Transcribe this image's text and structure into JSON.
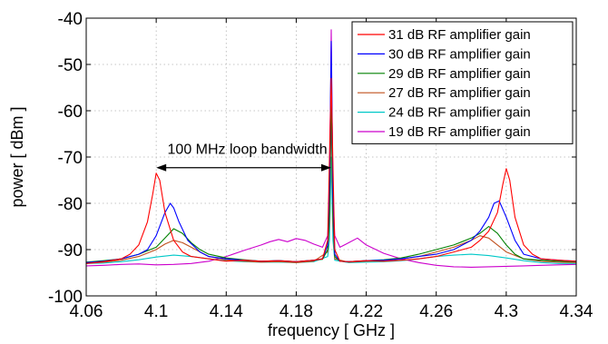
{
  "chart_data": {
    "type": "line",
    "title": "",
    "xlabel": "frequency [ GHz ]",
    "ylabel": "power [ dBm ]",
    "xlim": [
      4.06,
      4.34
    ],
    "ylim": [
      -100,
      -40
    ],
    "xticks": [
      4.06,
      4.1,
      4.14,
      4.18,
      4.22,
      4.26,
      4.3,
      4.34
    ],
    "xtick_labels": [
      "4.06",
      "4.1",
      "4.14",
      "4.18",
      "4.22",
      "4.26",
      "4.3",
      "4.34"
    ],
    "yticks": [
      -100,
      -90,
      -80,
      -70,
      -60,
      -50,
      -40
    ],
    "ytick_labels": [
      "-100",
      "-90",
      "-80",
      "-70",
      "-60",
      "-50",
      "-40"
    ],
    "grid": true,
    "legend_position": "top-right",
    "annotation": {
      "text": "100 MHz loop bandwidth",
      "arrow_from": [
        4.1,
        -72.3
      ],
      "arrow_to": [
        4.2,
        -72.3
      ]
    },
    "series": [
      {
        "name": "31 dB RF amplifier gain",
        "color": "#ff0000",
        "x": [
          4.06,
          4.07,
          4.08,
          4.085,
          4.09,
          4.095,
          4.098,
          4.1,
          4.102,
          4.105,
          4.11,
          4.115,
          4.12,
          4.13,
          4.14,
          4.15,
          4.16,
          4.17,
          4.18,
          4.19,
          4.195,
          4.198,
          4.199,
          4.2,
          4.201,
          4.202,
          4.205,
          4.21,
          4.22,
          4.23,
          4.24,
          4.25,
          4.26,
          4.27,
          4.28,
          4.285,
          4.29,
          4.295,
          4.298,
          4.3,
          4.302,
          4.305,
          4.31,
          4.315,
          4.32,
          4.33,
          4.34
        ],
        "y": [
          -93,
          -92.6,
          -92,
          -91,
          -89,
          -84,
          -78,
          -73.5,
          -75,
          -82,
          -88,
          -90.5,
          -91.5,
          -92,
          -92.5,
          -92.3,
          -92.5,
          -92.4,
          -92.6,
          -92.3,
          -92,
          -88,
          -70,
          -53,
          -72,
          -90,
          -92.5,
          -92.6,
          -92.4,
          -92.5,
          -92.3,
          -92,
          -91.5,
          -90.5,
          -89.5,
          -88,
          -86,
          -82,
          -76,
          -72.5,
          -75,
          -83,
          -89,
          -91,
          -92,
          -92.3,
          -92.5
        ]
      },
      {
        "name": "30 dB RF amplifier gain",
        "color": "#0000ff",
        "x": [
          4.06,
          4.07,
          4.08,
          4.09,
          4.095,
          4.1,
          4.105,
          4.108,
          4.11,
          4.113,
          4.118,
          4.125,
          4.13,
          4.14,
          4.15,
          4.16,
          4.17,
          4.18,
          4.19,
          4.195,
          4.198,
          4.199,
          4.2,
          4.201,
          4.202,
          4.205,
          4.21,
          4.22,
          4.23,
          4.24,
          4.25,
          4.26,
          4.27,
          4.28,
          4.285,
          4.29,
          4.293,
          4.296,
          4.3,
          4.305,
          4.31,
          4.32,
          4.33,
          4.34
        ],
        "y": [
          -92.8,
          -92.5,
          -92,
          -91,
          -90,
          -87,
          -82,
          -80,
          -81,
          -84,
          -88,
          -90.5,
          -91.5,
          -92,
          -92.3,
          -92.5,
          -92.4,
          -92.6,
          -92.3,
          -92,
          -89,
          -76,
          -45,
          -78,
          -91,
          -92.5,
          -92.6,
          -92.4,
          -92.3,
          -92,
          -91.5,
          -91,
          -90,
          -88,
          -86,
          -83,
          -80,
          -79.5,
          -83,
          -88,
          -91,
          -92,
          -92.3,
          -92.5
        ]
      },
      {
        "name": "29 dB RF amplifier gain",
        "color": "#008000",
        "x": [
          4.06,
          4.07,
          4.08,
          4.09,
          4.1,
          4.105,
          4.11,
          4.115,
          4.12,
          4.125,
          4.13,
          4.14,
          4.15,
          4.16,
          4.17,
          4.18,
          4.19,
          4.195,
          4.198,
          4.199,
          4.2,
          4.201,
          4.202,
          4.205,
          4.21,
          4.22,
          4.23,
          4.24,
          4.25,
          4.26,
          4.27,
          4.28,
          4.285,
          4.29,
          4.295,
          4.3,
          4.305,
          4.31,
          4.32,
          4.33,
          4.34
        ],
        "y": [
          -92.7,
          -92.4,
          -92,
          -91,
          -89.5,
          -87.5,
          -85.5,
          -86.5,
          -88.5,
          -90,
          -91,
          -91.8,
          -92.2,
          -92.5,
          -92.4,
          -92.6,
          -92.3,
          -92.1,
          -90,
          -82,
          -55,
          -82,
          -91.5,
          -92.5,
          -92.6,
          -92.4,
          -92.2,
          -91.8,
          -91,
          -90,
          -89,
          -87.5,
          -86.5,
          -85,
          -86.5,
          -89,
          -91,
          -92,
          -92.3,
          -92.5,
          -92.6
        ]
      },
      {
        "name": "27 dB RF amplifier gain",
        "color": "#c0501e",
        "x": [
          4.06,
          4.07,
          4.08,
          4.09,
          4.1,
          4.105,
          4.11,
          4.115,
          4.12,
          4.125,
          4.13,
          4.14,
          4.15,
          4.16,
          4.17,
          4.18,
          4.19,
          4.198,
          4.199,
          4.2,
          4.201,
          4.202,
          4.21,
          4.22,
          4.23,
          4.24,
          4.25,
          4.26,
          4.27,
          4.28,
          4.285,
          4.29,
          4.295,
          4.3,
          4.31,
          4.32,
          4.33,
          4.34
        ],
        "y": [
          -93,
          -92.7,
          -92.3,
          -91.5,
          -90,
          -88.8,
          -88,
          -88.5,
          -89.5,
          -90.5,
          -91.5,
          -92.2,
          -92.5,
          -92.7,
          -92.6,
          -92.8,
          -92.5,
          -90.5,
          -84,
          -60,
          -84,
          -92,
          -92.7,
          -92.5,
          -92.4,
          -92,
          -91.5,
          -90.5,
          -89.5,
          -88,
          -87,
          -87.5,
          -89,
          -90.5,
          -92,
          -92.5,
          -92.7,
          -92.8
        ]
      },
      {
        "name": "24 dB RF amplifier gain",
        "color": "#00c8c8",
        "x": [
          4.06,
          4.07,
          4.08,
          4.09,
          4.1,
          4.11,
          4.12,
          4.13,
          4.14,
          4.15,
          4.16,
          4.17,
          4.18,
          4.19,
          4.198,
          4.199,
          4.2,
          4.201,
          4.202,
          4.21,
          4.22,
          4.23,
          4.24,
          4.25,
          4.26,
          4.27,
          4.28,
          4.29,
          4.3,
          4.31,
          4.32,
          4.33,
          4.34
        ],
        "y": [
          -93,
          -92.9,
          -92.6,
          -92.2,
          -91.6,
          -91.2,
          -91.5,
          -92,
          -92.4,
          -92.6,
          -92.7,
          -92.7,
          -92.8,
          -92.6,
          -91.5,
          -88,
          -70,
          -88,
          -92.3,
          -92.8,
          -92.7,
          -92.6,
          -92.4,
          -92,
          -91.5,
          -91.2,
          -91,
          -91.3,
          -91.8,
          -92.4,
          -92.8,
          -93,
          -93
        ]
      },
      {
        "name": "19 dB RF amplifier gain",
        "color": "#cc00cc",
        "x": [
          4.06,
          4.07,
          4.08,
          4.09,
          4.1,
          4.11,
          4.12,
          4.13,
          4.14,
          4.15,
          4.16,
          4.165,
          4.17,
          4.175,
          4.18,
          4.185,
          4.19,
          4.195,
          4.198,
          4.199,
          4.2,
          4.201,
          4.202,
          4.205,
          4.21,
          4.215,
          4.22,
          4.23,
          4.24,
          4.25,
          4.26,
          4.27,
          4.28,
          4.29,
          4.3,
          4.31,
          4.32,
          4.33,
          4.34
        ],
        "y": [
          -93.5,
          -93.4,
          -93.2,
          -93.1,
          -93.3,
          -93.2,
          -93,
          -92.5,
          -91.5,
          -90.2,
          -89,
          -88.3,
          -87.8,
          -88.3,
          -87.6,
          -88,
          -88.8,
          -89.5,
          -87,
          -78,
          -42.5,
          -78,
          -87,
          -89.5,
          -88.5,
          -87.5,
          -89,
          -90.8,
          -92,
          -92.8,
          -93.4,
          -93.7,
          -93.8,
          -93.7,
          -93.6,
          -93.5,
          -93.4,
          -93.3,
          -93.2
        ]
      }
    ]
  }
}
